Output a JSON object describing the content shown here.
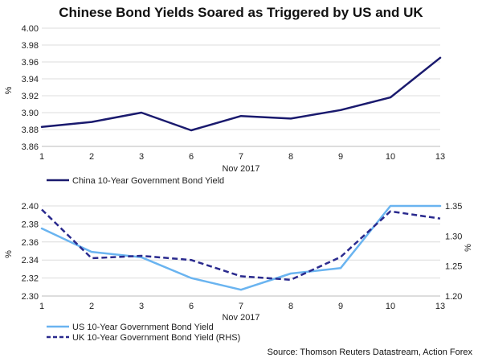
{
  "page": {
    "title": "Chinese Bond Yields Soared as Triggered by US and UK",
    "source": "Source: Thomson Reuters Datastream, Action Forex"
  },
  "chart_data": [
    {
      "type": "line",
      "categories": [
        "1",
        "2",
        "3",
        "6",
        "7",
        "8",
        "9",
        "10",
        "13"
      ],
      "xlabel": "Nov 2017",
      "ylabel": "%",
      "ylim": [
        3.86,
        4.0
      ],
      "yticks": [
        "3.86",
        "3.88",
        "3.90",
        "3.92",
        "3.94",
        "3.96",
        "3.98",
        "4.00"
      ],
      "grid": true,
      "legend": "bottom-left",
      "series": [
        {
          "name": "China 10-Year Government Bond Yield",
          "color": "#1a1a6e",
          "style": "solid",
          "values": [
            3.883,
            3.889,
            3.9,
            3.879,
            3.896,
            3.893,
            3.903,
            3.918,
            3.965
          ]
        }
      ]
    },
    {
      "type": "line",
      "categories": [
        "1",
        "2",
        "3",
        "6",
        "7",
        "8",
        "9",
        "10",
        "13"
      ],
      "xlabel": "Nov 2017",
      "ylabel": "%",
      "y2label": "%",
      "ylim": [
        2.3,
        2.4
      ],
      "y2lim": [
        1.2,
        1.35
      ],
      "yticks": [
        "2.30",
        "2.32",
        "2.34",
        "2.36",
        "2.38",
        "2.40"
      ],
      "y2ticks": [
        "1.20",
        "1.25",
        "1.30",
        "1.35"
      ],
      "grid": true,
      "legend": "bottom-left",
      "series": [
        {
          "name": "US 10-Year Government Bond Yield",
          "color": "#6ab4f0",
          "style": "solid",
          "axis": "left",
          "values": [
            2.375,
            2.349,
            2.343,
            2.32,
            2.307,
            2.325,
            2.331,
            2.4,
            2.4
          ]
        },
        {
          "name": "UK 10-Year Government Bond Yield (RHS)",
          "color": "#2a2a8e",
          "style": "dashed",
          "axis": "right",
          "values": [
            1.344,
            1.263,
            1.267,
            1.26,
            1.233,
            1.227,
            1.265,
            1.341,
            1.329
          ]
        }
      ]
    }
  ]
}
